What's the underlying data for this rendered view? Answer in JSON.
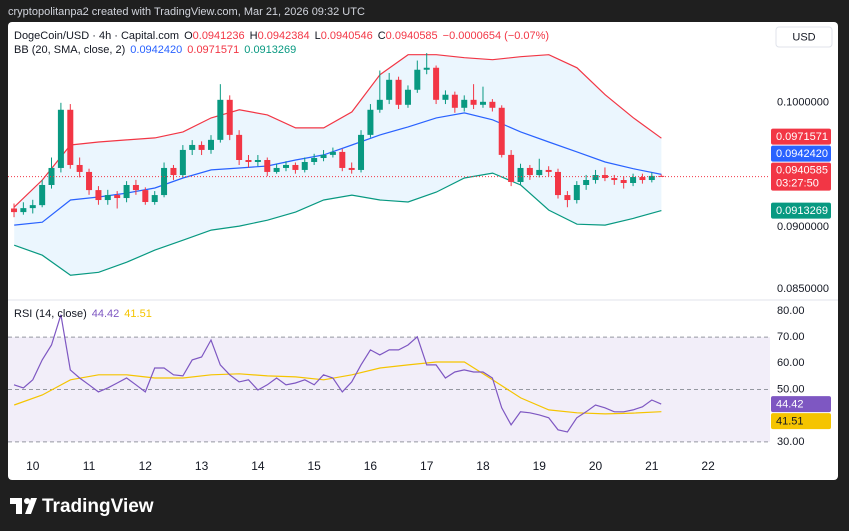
{
  "watermark": "cryptopolitanpa2 created with TradingView.com, Mar 21, 2026 09:32 UTC",
  "currency_button": "USD",
  "brand": "TradingView",
  "chart_data": [
    {
      "type": "candlestick",
      "title": "DogeCoin/USD · 4h · Capital.com",
      "ohlc_header": [
        {
          "label": "O",
          "value": "0.0941236"
        },
        {
          "label": "H",
          "value": "0.0942384"
        },
        {
          "label": "L",
          "value": "0.0940546"
        },
        {
          "label": "C",
          "value": "0.0940585"
        }
      ],
      "change": "−0.0000654 (−0.07%)",
      "countdown": "03:27:50",
      "up_color": "#089981",
      "down_color": "#f23645",
      "x": [
        9.667,
        9.833,
        10,
        10.167,
        10.333,
        10.5,
        10.667,
        10.833,
        11,
        11.167,
        11.333,
        11.5,
        11.667,
        11.833,
        12,
        12.167,
        12.333,
        12.5,
        12.667,
        12.833,
        13,
        13.167,
        13.333,
        13.5,
        13.667,
        13.833,
        14,
        14.167,
        14.333,
        14.5,
        14.667,
        14.833,
        15,
        15.167,
        15.333,
        15.5,
        15.667,
        15.833,
        16,
        16.167,
        16.333,
        16.5,
        16.667,
        16.833,
        17,
        17.167,
        17.333,
        17.5,
        17.667,
        17.833,
        18,
        18.167,
        18.333,
        18.5,
        18.667,
        18.833,
        19,
        19.167,
        19.333,
        19.5,
        19.667,
        19.833,
        20,
        20.167,
        20.333,
        20.5,
        20.667,
        20.833,
        21,
        21.167
      ],
      "open": [
        0.0915,
        0.09121,
        0.09153,
        0.09177,
        0.09339,
        0.09476,
        0.09944,
        0.095,
        0.09444,
        0.09298,
        0.09218,
        0.09258,
        0.09234,
        0.09339,
        0.09298,
        0.09202,
        0.09258,
        0.09476,
        0.09419,
        0.09621,
        0.09661,
        0.09621,
        0.09702,
        0.10024,
        0.09742,
        0.0954,
        0.09524,
        0.0954,
        0.09444,
        0.09476,
        0.095,
        0.0946,
        0.09524,
        0.09556,
        0.09581,
        0.09605,
        0.09476,
        0.0946,
        0.09742,
        0.09944,
        0.10024,
        0.10185,
        0.09984,
        0.10105,
        0.10266,
        0.10282,
        0.10024,
        0.10065,
        0.0996,
        0.10024,
        0.09984,
        0.10008,
        0.0996,
        0.09581,
        0.09363,
        0.09476,
        0.09419,
        0.0946,
        0.09444,
        0.09258,
        0.09218,
        0.09339,
        0.09379,
        0.09419,
        0.09395,
        0.09379,
        0.09355,
        0.09403,
        0.09379,
        0.0941236
      ],
      "high": [
        0.0919,
        0.092,
        0.0922,
        0.0938,
        0.0956,
        0.1,
        0.0999,
        0.0956,
        0.0947,
        0.0933,
        0.093,
        0.0929,
        0.0937,
        0.0938,
        0.0932,
        0.0929,
        0.0952,
        0.095,
        0.0966,
        0.097,
        0.0969,
        0.0974,
        0.1015,
        0.1006,
        0.0978,
        0.0958,
        0.0958,
        0.0956,
        0.0951,
        0.0953,
        0.0952,
        0.0956,
        0.0959,
        0.0962,
        0.0964,
        0.0963,
        0.0952,
        0.0978,
        0.0999,
        0.1026,
        0.1024,
        0.1021,
        0.1014,
        0.1034,
        0.104,
        0.103,
        0.101,
        0.1009,
        0.1006,
        0.1015,
        0.1013,
        0.1003,
        0.0998,
        0.0962,
        0.0951,
        0.095,
        0.0955,
        0.0949,
        0.0947,
        0.0929,
        0.0937,
        0.0942,
        0.0946,
        0.0948,
        0.0942,
        0.0941,
        0.0943,
        0.0943,
        0.0944,
        0.0942384
      ],
      "low": [
        0.0908,
        0.091,
        0.0911,
        0.0916,
        0.0931,
        0.0944,
        0.0947,
        0.094,
        0.0926,
        0.0918,
        0.0918,
        0.0915,
        0.092,
        0.0926,
        0.0918,
        0.0918,
        0.0924,
        0.0938,
        0.094,
        0.0958,
        0.0958,
        0.0959,
        0.0968,
        0.097,
        0.095,
        0.0948,
        0.0949,
        0.0941,
        0.0943,
        0.0945,
        0.0943,
        0.0944,
        0.095,
        0.0953,
        0.0956,
        0.0945,
        0.0943,
        0.0944,
        0.0972,
        0.0992,
        0.0999,
        0.0995,
        0.0996,
        0.1008,
        0.1023,
        0.0999,
        0.0999,
        0.0992,
        0.0993,
        0.0995,
        0.0996,
        0.0993,
        0.0956,
        0.0933,
        0.0934,
        0.0938,
        0.094,
        0.0941,
        0.0923,
        0.0916,
        0.0919,
        0.093,
        0.0935,
        0.0937,
        0.0934,
        0.0931,
        0.0933,
        0.0935,
        0.0936,
        0.0940546
      ],
      "close": [
        0.09121,
        0.09153,
        0.09177,
        0.09339,
        0.09476,
        0.09944,
        0.095,
        0.09444,
        0.09298,
        0.09218,
        0.09258,
        0.09234,
        0.09339,
        0.09298,
        0.09202,
        0.09258,
        0.09476,
        0.09419,
        0.09621,
        0.09661,
        0.09621,
        0.09702,
        0.10024,
        0.09742,
        0.0954,
        0.09524,
        0.0954,
        0.09444,
        0.09476,
        0.095,
        0.0946,
        0.09524,
        0.09556,
        0.09581,
        0.09605,
        0.09476,
        0.0946,
        0.09742,
        0.09944,
        0.10024,
        0.10185,
        0.09984,
        0.10105,
        0.10266,
        0.10282,
        0.10024,
        0.10065,
        0.0996,
        0.10024,
        0.09984,
        0.10008,
        0.0996,
        0.09581,
        0.09363,
        0.09476,
        0.09419,
        0.0946,
        0.09444,
        0.09258,
        0.09218,
        0.09339,
        0.09379,
        0.09419,
        0.09395,
        0.09379,
        0.09355,
        0.09403,
        0.09379,
        0.09412,
        0.0940585
      ],
      "xlim": [
        9.56,
        23.1
      ],
      "xticks": [
        10,
        11,
        12,
        13,
        14,
        15,
        16,
        17,
        18,
        19,
        20,
        21,
        22
      ],
      "ylim": [
        0.0843,
        0.1065
      ],
      "yticks": [
        {
          "value": 0.085,
          "label": "0.0850000"
        },
        {
          "value": 0.09,
          "label": "0.0900000"
        },
        {
          "value": 0.1,
          "label": "0.1000000"
        }
      ],
      "bollinger": {
        "label": "BB (20, SMA, close, 2)",
        "fill": "rgba(33,150,243,0.09)",
        "x": [
          9.67,
          10.17,
          10.67,
          11.17,
          11.67,
          12.17,
          12.67,
          13.17,
          13.67,
          14.17,
          14.67,
          15.17,
          15.67,
          16.17,
          16.67,
          17.17,
          17.67,
          18.17,
          18.67,
          19.17,
          19.67,
          20.17,
          20.67,
          21.17
        ],
        "basis": {
          "color": "#2962ff",
          "value_label": "0.0942420",
          "values": [
            0.09016,
            0.0904,
            0.09218,
            0.09242,
            0.09274,
            0.09315,
            0.09395,
            0.0946,
            0.09476,
            0.09492,
            0.0954,
            0.09581,
            0.09661,
            0.09742,
            0.09806,
            0.09879,
            0.09919,
            0.09863,
            0.09766,
            0.09685,
            0.09605,
            0.09524,
            0.0947,
            0.094242
          ]
        },
        "upper": {
          "color": "#f23645",
          "value_label": "0.0971571",
          "values": [
            0.09161,
            0.09379,
            0.09661,
            0.09685,
            0.09702,
            0.09718,
            0.09766,
            0.09879,
            0.09944,
            0.09903,
            0.09798,
            0.09798,
            0.09927,
            0.10226,
            0.10387,
            0.10387,
            0.10363,
            0.10347,
            0.10371,
            0.10387,
            0.10282,
            0.10065,
            0.0988,
            0.0971571
          ]
        },
        "lower": {
          "color": "#089981",
          "value_label": "0.0913269",
          "values": [
            0.08855,
            0.08774,
            0.08613,
            0.08637,
            0.08718,
            0.08815,
            0.08895,
            0.08976,
            0.09008,
            0.09056,
            0.09121,
            0.09218,
            0.09258,
            0.09218,
            0.09202,
            0.09282,
            0.09395,
            0.09435,
            0.09339,
            0.09137,
            0.09024,
            0.09016,
            0.0907,
            0.0913269
          ]
        }
      }
    },
    {
      "type": "rsi",
      "title": "RSI (14, close)",
      "band_fill": "rgba(126,87,194,0.1)",
      "band": [
        30,
        70
      ],
      "middle": 50,
      "ylim": [
        25,
        83.4
      ],
      "yticks": [
        {
          "value": 30,
          "label": "30.00"
        },
        {
          "value": 50,
          "label": "50.00"
        },
        {
          "value": 60,
          "label": "60.00"
        },
        {
          "value": 70,
          "label": "70.00"
        },
        {
          "value": 80,
          "label": "80.00"
        }
      ],
      "rsi": {
        "color": "#7e57c2",
        "value_label": "44.42",
        "x": [
          9.667,
          9.833,
          10,
          10.167,
          10.333,
          10.5,
          10.667,
          10.833,
          11,
          11.167,
          11.333,
          11.5,
          11.667,
          11.833,
          12,
          12.167,
          12.333,
          12.5,
          12.667,
          12.833,
          13,
          13.167,
          13.333,
          13.5,
          13.667,
          13.833,
          14,
          14.167,
          14.333,
          14.5,
          14.667,
          14.833,
          15,
          15.167,
          15.333,
          15.5,
          15.667,
          15.833,
          16,
          16.167,
          16.333,
          16.5,
          16.667,
          16.833,
          17,
          17.167,
          17.333,
          17.5,
          17.667,
          17.833,
          18,
          18.167,
          18.333,
          18.5,
          18.667,
          18.833,
          19,
          19.167,
          19.333,
          19.5,
          19.667,
          19.833,
          20,
          20.167,
          20.333,
          20.5,
          20.667,
          20.833,
          21,
          21.167
        ],
        "values": [
          51.8,
          50.6,
          53.7,
          61.3,
          67.0,
          78.5,
          57.5,
          54.4,
          51.8,
          49.1,
          50.6,
          52.5,
          54.4,
          51.8,
          49.1,
          58.2,
          58.2,
          55.6,
          55.2,
          61.3,
          62.4,
          68.9,
          59.4,
          55.6,
          52.9,
          53.7,
          49.8,
          51.8,
          54.4,
          51.8,
          52.5,
          53.7,
          51.8,
          55.6,
          54.4,
          49.1,
          52.9,
          59.4,
          65.1,
          63.2,
          65.1,
          65.1,
          67.0,
          70.1,
          59.4,
          59.4,
          54.4,
          56.7,
          57.5,
          56.7,
          56.7,
          54.4,
          43.0,
          36.5,
          41.5,
          41.1,
          40.3,
          39.2,
          34.6,
          33.8,
          39.2,
          41.5,
          44.1,
          43.0,
          41.5,
          41.5,
          42.2,
          43.4,
          46.0,
          44.42
        ]
      },
      "rsi_ma": {
        "color": "#f5c400",
        "value_label": "41.51",
        "x": [
          9.67,
          10.17,
          10.67,
          11.17,
          11.67,
          12.17,
          12.67,
          13.17,
          13.67,
          14.17,
          14.67,
          15.17,
          15.67,
          16.17,
          16.67,
          17.17,
          17.67,
          18.17,
          18.67,
          19.17,
          19.67,
          20.17,
          20.67,
          21.17
        ],
        "values": [
          44.1,
          47.9,
          53.7,
          55.6,
          55.6,
          54.4,
          54.4,
          55.6,
          56.0,
          55.2,
          54.8,
          53.7,
          55.6,
          58.2,
          59.4,
          60.5,
          60.5,
          53.7,
          46.8,
          42.2,
          41.1,
          40.7,
          41.0,
          41.51
        ]
      }
    }
  ]
}
